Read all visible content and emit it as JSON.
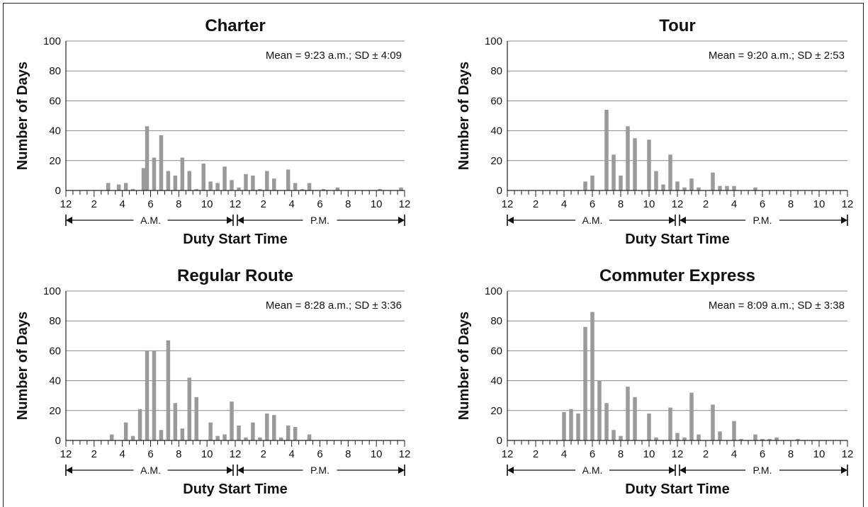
{
  "chart_data": [
    {
      "type": "bar",
      "title": "Charter",
      "xlabel": "Duty Start Time",
      "ylabel": "Number of Days",
      "annotation": "Mean = 9:23 a.m.; SD ± 4:09",
      "ylim": [
        0,
        100
      ],
      "yticks": [
        "0",
        "20",
        "40",
        "60",
        "80",
        "100"
      ],
      "xlim": [
        0,
        24
      ],
      "xticks": [
        "12",
        "2",
        "4",
        "6",
        "8",
        "10",
        "12",
        "2",
        "4",
        "6",
        "8",
        "10",
        "12"
      ],
      "period_labels": [
        "A.M.",
        "P.M."
      ],
      "grid": true,
      "x": [
        3,
        3.75,
        4.25,
        4.75,
        5.5,
        5.75,
        6.25,
        6.75,
        7.25,
        7.75,
        8.25,
        8.75,
        9.25,
        9.75,
        10.25,
        10.75,
        11.25,
        11.75,
        12.25,
        12.75,
        13.25,
        13.75,
        14.25,
        14.75,
        15.75,
        16.25,
        16.75,
        17.25,
        18.25,
        19.25,
        22.25,
        23.75
      ],
      "values": [
        5,
        4,
        5,
        1,
        15,
        43,
        22,
        37,
        13,
        10,
        22,
        13,
        1,
        18,
        6,
        5,
        16,
        7,
        2,
        11,
        10,
        1,
        13,
        8,
        14,
        5,
        1,
        5,
        1,
        2,
        1,
        2
      ]
    },
    {
      "type": "bar",
      "title": "Tour",
      "xlabel": "Duty Start Time",
      "ylabel": "Number of Days",
      "annotation": "Mean = 9:20 a.m.; SD ± 2:53",
      "ylim": [
        0,
        100
      ],
      "yticks": [
        "0",
        "20",
        "40",
        "60",
        "80",
        "100"
      ],
      "xlim": [
        0,
        24
      ],
      "xticks": [
        "12",
        "2",
        "4",
        "6",
        "8",
        "10",
        "12",
        "2",
        "4",
        "6",
        "8",
        "10",
        "12"
      ],
      "period_labels": [
        "A.M.",
        "P.M."
      ],
      "grid": true,
      "x": [
        5.5,
        6.0,
        7.0,
        7.5,
        8.0,
        8.5,
        9.0,
        10.0,
        10.5,
        11.0,
        11.5,
        12.0,
        12.5,
        13.0,
        13.5,
        14.5,
        15.0,
        15.5,
        16.0,
        17.5
      ],
      "values": [
        6,
        10,
        54,
        24,
        10,
        43,
        35,
        34,
        13,
        4,
        24,
        6,
        2,
        8,
        2,
        12,
        3,
        3,
        3,
        2
      ]
    },
    {
      "type": "bar",
      "title": "Regular Route",
      "xlabel": "Duty Start Time",
      "ylabel": "Number of Days",
      "annotation": "Mean = 8:28 a.m.; SD ± 3:36",
      "ylim": [
        0,
        100
      ],
      "yticks": [
        "0",
        "20",
        "40",
        "60",
        "80",
        "100"
      ],
      "xlim": [
        0,
        24
      ],
      "xticks": [
        "12",
        "2",
        "4",
        "6",
        "8",
        "10",
        "12",
        "2",
        "4",
        "6",
        "8",
        "10",
        "12"
      ],
      "period_labels": [
        "A.M.",
        "P.M."
      ],
      "grid": true,
      "x": [
        3.25,
        4.25,
        4.75,
        5.25,
        5.75,
        6.25,
        6.75,
        7.25,
        7.75,
        8.25,
        8.75,
        9.25,
        10.25,
        10.75,
        11.25,
        11.75,
        12.25,
        12.75,
        13.25,
        13.75,
        14.25,
        14.75,
        15.25,
        15.75,
        16.25,
        17.25
      ],
      "values": [
        4,
        12,
        3,
        21,
        60,
        60,
        7,
        67,
        25,
        8,
        42,
        29,
        12,
        3,
        4,
        26,
        10,
        2,
        12,
        2,
        18,
        17,
        2,
        10,
        9,
        4
      ]
    },
    {
      "type": "bar",
      "title": "Commuter Express",
      "xlabel": "Duty Start Time",
      "ylabel": "Number of Days",
      "annotation": "Mean = 8:09 a.m.; SD ± 3:38",
      "ylim": [
        0,
        100
      ],
      "yticks": [
        "0",
        "20",
        "40",
        "60",
        "80",
        "100"
      ],
      "xlim": [
        0,
        24
      ],
      "xticks": [
        "12",
        "2",
        "4",
        "6",
        "8",
        "10",
        "12",
        "2",
        "4",
        "6",
        "8",
        "10",
        "12"
      ],
      "period_labels": [
        "A.M.",
        "P.M."
      ],
      "grid": true,
      "x": [
        4.0,
        4.5,
        5.0,
        5.5,
        6.0,
        6.5,
        7.0,
        7.5,
        8.0,
        8.5,
        9.0,
        10.0,
        10.5,
        11.5,
        12.0,
        12.5,
        13.0,
        13.5,
        14.5,
        15.0,
        16.0,
        16.5,
        17.5,
        18.0,
        18.5,
        19.0,
        20.5
      ],
      "values": [
        19,
        21,
        18,
        76,
        86,
        40,
        25,
        7,
        3,
        36,
        29,
        18,
        2,
        22,
        5,
        2,
        32,
        4,
        24,
        6,
        13,
        1,
        4,
        1,
        1,
        2,
        1
      ]
    }
  ]
}
